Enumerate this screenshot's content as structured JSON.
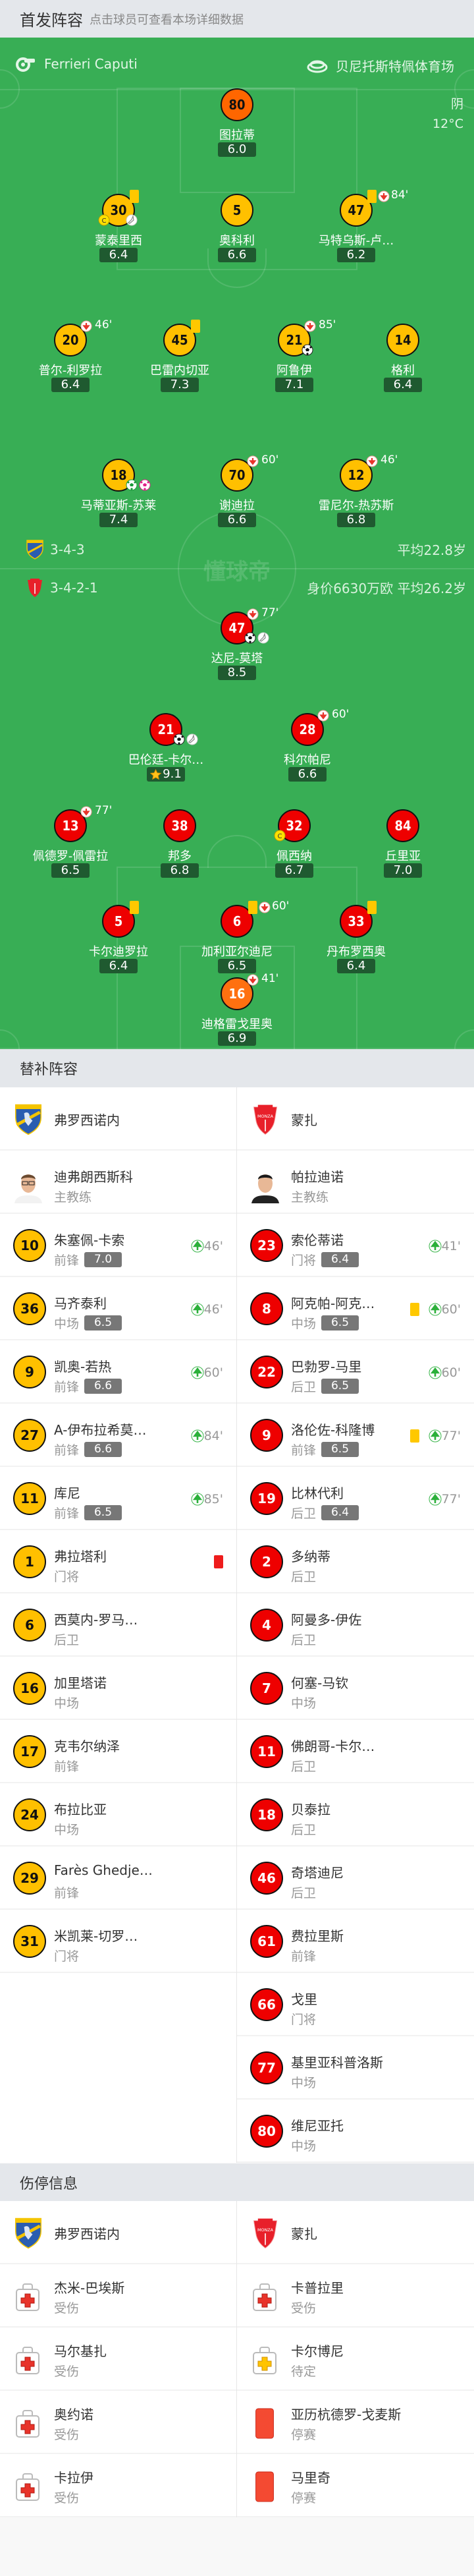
{
  "header": {
    "title": "首发阵容",
    "subtitle": "点击球员可查看本场详细数据"
  },
  "match_info": {
    "referee": "Ferrieri Caputi",
    "stadium": "贝尼托斯特佩体育场",
    "weather": "阴",
    "temperature": "12°C",
    "watermark": "懂球帝"
  },
  "colors": {
    "pitch": "#38ae55",
    "home_shirt": "#ffc000",
    "home_gk": "#ff6600",
    "away_shirt": "#ee0000",
    "away_gk": "#ff7010",
    "rating_bg": "#1f5a30"
  },
  "home": {
    "name": "弗罗西诺内",
    "formation": "3-4-3",
    "summary": "平均22.8岁",
    "lines": [
      [
        {
          "number": "80",
          "name": "图拉蒂",
          "rating": "6.0",
          "gk": true
        }
      ],
      [
        {
          "number": "30",
          "name": "蒙泰里西",
          "rating": "6.4",
          "yellow": true,
          "captain": true,
          "assist": true
        },
        {
          "number": "5",
          "name": "奥科利",
          "rating": "6.6"
        },
        {
          "number": "47",
          "name": "马特乌斯-卢…",
          "rating": "6.2",
          "yellow": true,
          "sub_out": "84'"
        }
      ],
      [
        {
          "number": "20",
          "name": "普尔-利罗拉",
          "rating": "6.4",
          "sub_out": "46'"
        },
        {
          "number": "45",
          "name": "巴雷内切亚",
          "rating": "7.3",
          "yellow": true
        },
        {
          "number": "21",
          "name": "阿鲁伊",
          "rating": "7.1",
          "sub_out": "85'",
          "goals": [
            "goal"
          ]
        },
        {
          "number": "14",
          "name": "格利",
          "rating": "6.4"
        }
      ],
      [
        {
          "number": "18",
          "name": "马蒂亚斯-苏莱",
          "rating": "7.4",
          "goals": [
            "penalty-goal",
            "own-goal"
          ]
        },
        {
          "number": "70",
          "name": "谢迪拉",
          "rating": "6.6",
          "sub_out": "60'"
        },
        {
          "number": "12",
          "name": "雷尼尔-热苏斯",
          "rating": "6.8",
          "sub_out": "46'"
        }
      ]
    ],
    "coach": {
      "name": "迪弗朗西斯科",
      "role": "主教练"
    },
    "subs": [
      {
        "number": "10",
        "name": "朱塞佩-卡索",
        "position": "前锋",
        "rating": "7.0",
        "sub_in": "46'"
      },
      {
        "number": "36",
        "name": "马齐泰利",
        "position": "中场",
        "rating": "6.5",
        "sub_in": "46'"
      },
      {
        "number": "9",
        "name": "凯奥-若热",
        "position": "前锋",
        "rating": "6.6",
        "sub_in": "60'"
      },
      {
        "number": "27",
        "name": "A-伊布拉希莫…",
        "position": "前锋",
        "rating": "6.6",
        "sub_in": "84'"
      },
      {
        "number": "11",
        "name": "库尼",
        "position": "前锋",
        "rating": "6.5",
        "sub_in": "85'"
      },
      {
        "number": "1",
        "name": "弗拉塔利",
        "position": "门将",
        "red": true
      },
      {
        "number": "6",
        "name": "西莫内-罗马…",
        "position": "后卫"
      },
      {
        "number": "16",
        "name": "加里塔诺",
        "position": "中场"
      },
      {
        "number": "17",
        "name": "克韦尔纳泽",
        "position": "前锋"
      },
      {
        "number": "24",
        "name": "布拉比亚",
        "position": "中场"
      },
      {
        "number": "29",
        "name": "Farès Ghedje…",
        "position": "前锋"
      },
      {
        "number": "31",
        "name": "米凯莱-切罗…",
        "position": "门将"
      }
    ],
    "injuries": [
      {
        "name": "杰米-巴埃斯",
        "status": "受伤",
        "icon": "injury"
      },
      {
        "name": "马尔基扎",
        "status": "受伤",
        "icon": "injury"
      },
      {
        "name": "奥约诺",
        "status": "受伤",
        "icon": "injury"
      },
      {
        "name": "卡拉伊",
        "status": "受伤",
        "icon": "injury"
      }
    ]
  },
  "away": {
    "name": "蒙扎",
    "formation": "3-4-2-1",
    "summary": "身价6630万欧 平均26.2岁",
    "lines": [
      [
        {
          "number": "47",
          "name": "达尼-莫塔",
          "rating": "8.5",
          "sub_out": "77'",
          "goals": [
            "goal",
            "assist"
          ]
        }
      ],
      [
        {
          "number": "21",
          "name": "巴伦廷-卡尔…",
          "rating": "9.1",
          "star": true,
          "goals": [
            "goal",
            "assist"
          ]
        },
        {
          "number": "28",
          "name": "科尔帕尼",
          "rating": "6.6",
          "sub_out": "60'"
        }
      ],
      [
        {
          "number": "13",
          "name": "佩德罗-佩雷拉",
          "rating": "6.5",
          "sub_out": "77'"
        },
        {
          "number": "38",
          "name": "邦多",
          "rating": "6.8"
        },
        {
          "number": "32",
          "name": "佩西纳",
          "rating": "6.7",
          "captain": true
        },
        {
          "number": "84",
          "name": "丘里亚",
          "rating": "7.0"
        }
      ],
      [
        {
          "number": "5",
          "name": "卡尔迪罗拉",
          "rating": "6.4",
          "yellow": true
        },
        {
          "number": "6",
          "name": "加利亚尔迪尼",
          "rating": "6.5",
          "yellow": true,
          "sub_out": "60'"
        },
        {
          "number": "33",
          "name": "丹布罗西奥",
          "rating": "6.4",
          "yellow": true
        }
      ],
      [
        {
          "number": "16",
          "name": "迪格雷戈里奥",
          "rating": "6.9",
          "gk": true,
          "sub_out": "41'"
        }
      ]
    ],
    "coach": {
      "name": "帕拉迪诺",
      "role": "主教练"
    },
    "subs": [
      {
        "number": "23",
        "name": "索伦蒂诺",
        "position": "门将",
        "rating": "6.4",
        "sub_in": "41'"
      },
      {
        "number": "8",
        "name": "阿克帕-阿克…",
        "position": "中场",
        "rating": "6.5",
        "yellow": true,
        "sub_in": "60'"
      },
      {
        "number": "22",
        "name": "巴勃罗-马里",
        "position": "后卫",
        "rating": "6.5",
        "sub_in": "60'"
      },
      {
        "number": "9",
        "name": "洛伦佐-科隆博",
        "position": "前锋",
        "rating": "6.5",
        "yellow": true,
        "sub_in": "77'"
      },
      {
        "number": "19",
        "name": "比林代利",
        "position": "后卫",
        "rating": "6.4",
        "sub_in": "77'"
      },
      {
        "number": "2",
        "name": "多纳蒂",
        "position": "后卫"
      },
      {
        "number": "4",
        "name": "阿曼多-伊佐",
        "position": "后卫"
      },
      {
        "number": "7",
        "name": "何塞-马钦",
        "position": "中场"
      },
      {
        "number": "11",
        "name": "佛朗哥-卡尔…",
        "position": "后卫"
      },
      {
        "number": "18",
        "name": "贝泰拉",
        "position": "后卫"
      },
      {
        "number": "46",
        "name": "奇塔迪尼",
        "position": "后卫"
      },
      {
        "number": "61",
        "name": "费拉里斯",
        "position": "前锋"
      },
      {
        "number": "66",
        "name": "戈里",
        "position": "门将"
      },
      {
        "number": "77",
        "name": "基里亚科普洛斯",
        "position": "中场"
      },
      {
        "number": "80",
        "name": "维尼亚托",
        "position": "中场"
      }
    ],
    "injuries": [
      {
        "name": "卡普拉里",
        "status": "受伤",
        "icon": "injury"
      },
      {
        "name": "卡尔博尼",
        "status": "待定",
        "icon": "doubtful"
      },
      {
        "name": "亚历杭德罗-戈麦斯",
        "status": "停赛",
        "icon": "red-card"
      },
      {
        "name": "马里奇",
        "status": "停赛",
        "icon": "red-card"
      }
    ]
  },
  "subs_section": {
    "title": "替补阵容"
  },
  "injury_section": {
    "title": "伤停信息"
  }
}
